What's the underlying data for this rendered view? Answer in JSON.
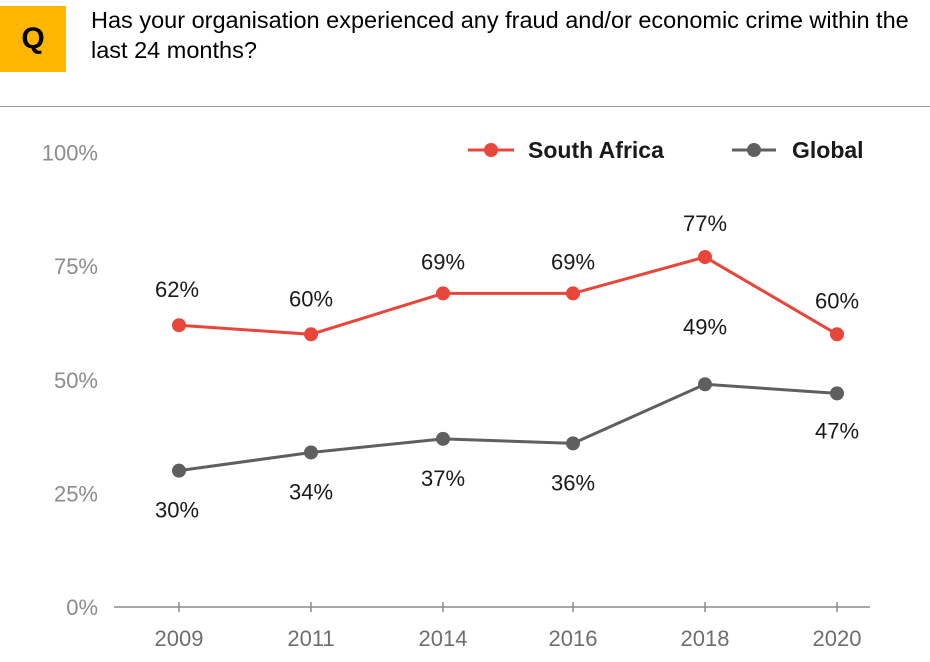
{
  "header": {
    "badge": "Q",
    "question": "Has your organisation experienced any fraud and/or economic crime within the last 24 months?"
  },
  "colors": {
    "badge": "#ffb600",
    "south_africa": "#e8463b",
    "global": "#5f5f5f"
  },
  "chart_data": {
    "type": "line",
    "x": [
      "2009",
      "2011",
      "2014",
      "2016",
      "2018",
      "2020"
    ],
    "yticks": [
      "0%",
      "25%",
      "50%",
      "75%",
      "100%"
    ],
    "ylim": [
      0,
      100
    ],
    "legend_position": "top-right",
    "grid": false,
    "series": [
      {
        "name": "South Africa",
        "values": [
          62,
          60,
          69,
          69,
          77,
          60
        ],
        "labels": [
          "62%",
          "60%",
          "69%",
          "69%",
          "77%",
          "60%"
        ]
      },
      {
        "name": "Global",
        "values": [
          30,
          34,
          37,
          36,
          49,
          47
        ],
        "labels": [
          "30%",
          "34%",
          "37%",
          "36%",
          "49%",
          "47%"
        ]
      }
    ]
  }
}
